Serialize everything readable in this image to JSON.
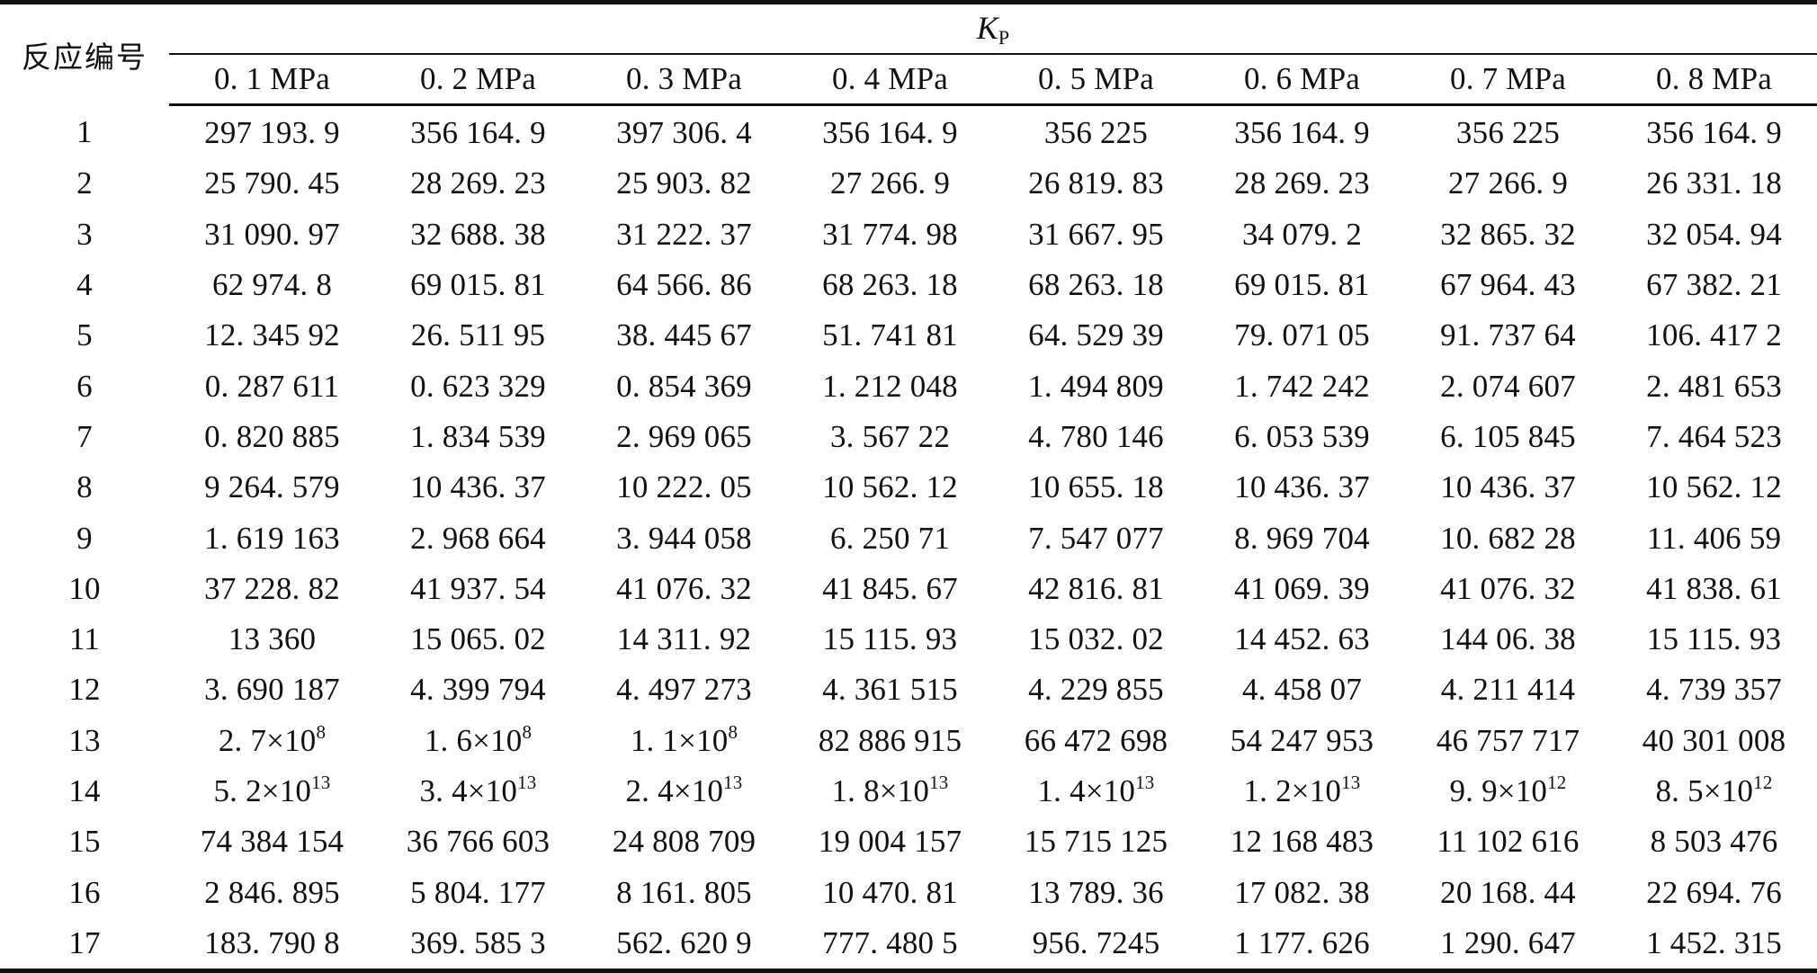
{
  "table": {
    "row_header": "反应编号",
    "group_header": {
      "symbol": "K",
      "subscript": "P"
    },
    "pressures": [
      "0. 1 MPa",
      "0. 2 MPa",
      "0. 3 MPa",
      "0. 4 MPa",
      "0. 5 MPa",
      "0. 6 MPa",
      "0. 7 MPa",
      "0. 8 MPa"
    ],
    "rows": [
      {
        "id": "1",
        "values": [
          {
            "text": "297 193. 9"
          },
          {
            "text": "356 164. 9"
          },
          {
            "text": "397 306. 4"
          },
          {
            "text": "356 164. 9"
          },
          {
            "text": "356 225"
          },
          {
            "text": "356 164. 9"
          },
          {
            "text": "356 225"
          },
          {
            "text": "356 164. 9"
          }
        ]
      },
      {
        "id": "2",
        "values": [
          {
            "text": "25 790. 45"
          },
          {
            "text": "28 269. 23"
          },
          {
            "text": "25 903. 82"
          },
          {
            "text": "27 266. 9"
          },
          {
            "text": "26 819. 83"
          },
          {
            "text": "28 269. 23"
          },
          {
            "text": "27 266. 9"
          },
          {
            "text": "26 331. 18"
          }
        ]
      },
      {
        "id": "3",
        "values": [
          {
            "text": "31 090. 97"
          },
          {
            "text": "32 688. 38"
          },
          {
            "text": "31 222. 37"
          },
          {
            "text": "31 774. 98"
          },
          {
            "text": "31 667. 95"
          },
          {
            "text": "34 079. 2"
          },
          {
            "text": "32 865. 32"
          },
          {
            "text": "32 054. 94"
          }
        ]
      },
      {
        "id": "4",
        "values": [
          {
            "text": "62 974. 8"
          },
          {
            "text": "69 015. 81"
          },
          {
            "text": "64 566. 86"
          },
          {
            "text": "68 263. 18"
          },
          {
            "text": "68 263. 18"
          },
          {
            "text": "69 015. 81"
          },
          {
            "text": "67 964. 43"
          },
          {
            "text": "67 382. 21"
          }
        ]
      },
      {
        "id": "5",
        "values": [
          {
            "text": "12. 345 92"
          },
          {
            "text": "26. 511 95"
          },
          {
            "text": "38. 445 67"
          },
          {
            "text": "51. 741 81"
          },
          {
            "text": "64. 529 39"
          },
          {
            "text": "79. 071 05"
          },
          {
            "text": "91. 737 64"
          },
          {
            "text": "106. 417 2"
          }
        ]
      },
      {
        "id": "6",
        "values": [
          {
            "text": "0. 287 611"
          },
          {
            "text": "0. 623 329"
          },
          {
            "text": "0. 854 369"
          },
          {
            "text": "1. 212 048"
          },
          {
            "text": "1. 494 809"
          },
          {
            "text": "1. 742 242"
          },
          {
            "text": "2. 074 607"
          },
          {
            "text": "2. 481 653"
          }
        ]
      },
      {
        "id": "7",
        "values": [
          {
            "text": "0. 820 885"
          },
          {
            "text": "1. 834 539"
          },
          {
            "text": "2. 969 065"
          },
          {
            "text": "3. 567 22"
          },
          {
            "text": "4. 780 146"
          },
          {
            "text": "6. 053 539"
          },
          {
            "text": "6. 105 845"
          },
          {
            "text": "7. 464 523"
          }
        ]
      },
      {
        "id": "8",
        "values": [
          {
            "text": "9 264. 579"
          },
          {
            "text": "10 436. 37"
          },
          {
            "text": "10 222. 05"
          },
          {
            "text": "10 562. 12"
          },
          {
            "text": "10 655. 18"
          },
          {
            "text": "10 436. 37"
          },
          {
            "text": "10 436. 37"
          },
          {
            "text": "10 562. 12"
          }
        ]
      },
      {
        "id": "9",
        "values": [
          {
            "text": "1. 619 163"
          },
          {
            "text": "2. 968 664"
          },
          {
            "text": "3. 944 058"
          },
          {
            "text": "6. 250 71"
          },
          {
            "text": "7. 547 077"
          },
          {
            "text": "8. 969 704"
          },
          {
            "text": "10. 682 28"
          },
          {
            "text": "11. 406 59"
          }
        ]
      },
      {
        "id": "10",
        "values": [
          {
            "text": "37 228. 82"
          },
          {
            "text": "41 937. 54"
          },
          {
            "text": "41 076. 32"
          },
          {
            "text": "41 845. 67"
          },
          {
            "text": "42 816. 81"
          },
          {
            "text": "41 069. 39"
          },
          {
            "text": "41 076. 32"
          },
          {
            "text": "41 838. 61"
          }
        ]
      },
      {
        "id": "11",
        "values": [
          {
            "text": "13 360"
          },
          {
            "text": "15 065. 02"
          },
          {
            "text": "14 311. 92"
          },
          {
            "text": "15 115. 93"
          },
          {
            "text": "15 032. 02"
          },
          {
            "text": "14 452. 63"
          },
          {
            "text": "144 06. 38"
          },
          {
            "text": "15 115. 93"
          }
        ]
      },
      {
        "id": "12",
        "values": [
          {
            "text": "3. 690 187"
          },
          {
            "text": "4. 399 794"
          },
          {
            "text": "4. 497 273"
          },
          {
            "text": "4. 361 515"
          },
          {
            "text": "4. 229 855"
          },
          {
            "text": "4. 458 07"
          },
          {
            "text": "4. 211 414"
          },
          {
            "text": "4. 739 357"
          }
        ]
      },
      {
        "id": "13",
        "values": [
          {
            "text": "2. 7×10",
            "exp": "8"
          },
          {
            "text": "1. 6×10",
            "exp": "8"
          },
          {
            "text": "1. 1×10",
            "exp": "8"
          },
          {
            "text": "82 886 915"
          },
          {
            "text": "66 472 698"
          },
          {
            "text": "54 247 953"
          },
          {
            "text": "46 757 717"
          },
          {
            "text": "40 301 008"
          }
        ]
      },
      {
        "id": "14",
        "values": [
          {
            "text": "5. 2×10",
            "exp": "13"
          },
          {
            "text": "3. 4×10",
            "exp": "13"
          },
          {
            "text": "2. 4×10",
            "exp": "13"
          },
          {
            "text": "1. 8×10",
            "exp": "13"
          },
          {
            "text": "1. 4×10",
            "exp": "13"
          },
          {
            "text": "1. 2×10",
            "exp": "13"
          },
          {
            "text": "9. 9×10",
            "exp": "12"
          },
          {
            "text": "8. 5×10",
            "exp": "12"
          }
        ]
      },
      {
        "id": "15",
        "values": [
          {
            "text": "74 384 154"
          },
          {
            "text": "36 766 603"
          },
          {
            "text": "24 808 709"
          },
          {
            "text": "19 004 157"
          },
          {
            "text": "15 715 125"
          },
          {
            "text": "12 168 483"
          },
          {
            "text": "11 102 616"
          },
          {
            "text": "8 503 476"
          }
        ]
      },
      {
        "id": "16",
        "values": [
          {
            "text": "2 846. 895"
          },
          {
            "text": "5 804. 177"
          },
          {
            "text": "8 161. 805"
          },
          {
            "text": "10 470. 81"
          },
          {
            "text": "13 789. 36"
          },
          {
            "text": "17 082. 38"
          },
          {
            "text": "20 168. 44"
          },
          {
            "text": "22 694. 76"
          }
        ]
      },
      {
        "id": "17",
        "values": [
          {
            "text": "183. 790 8"
          },
          {
            "text": "369. 585 3"
          },
          {
            "text": "562. 620 9"
          },
          {
            "text": "777. 480 5"
          },
          {
            "text": "956. 7245"
          },
          {
            "text": "1 177. 626"
          },
          {
            "text": "1 290. 647"
          },
          {
            "text": "1 452. 315"
          }
        ]
      }
    ]
  }
}
